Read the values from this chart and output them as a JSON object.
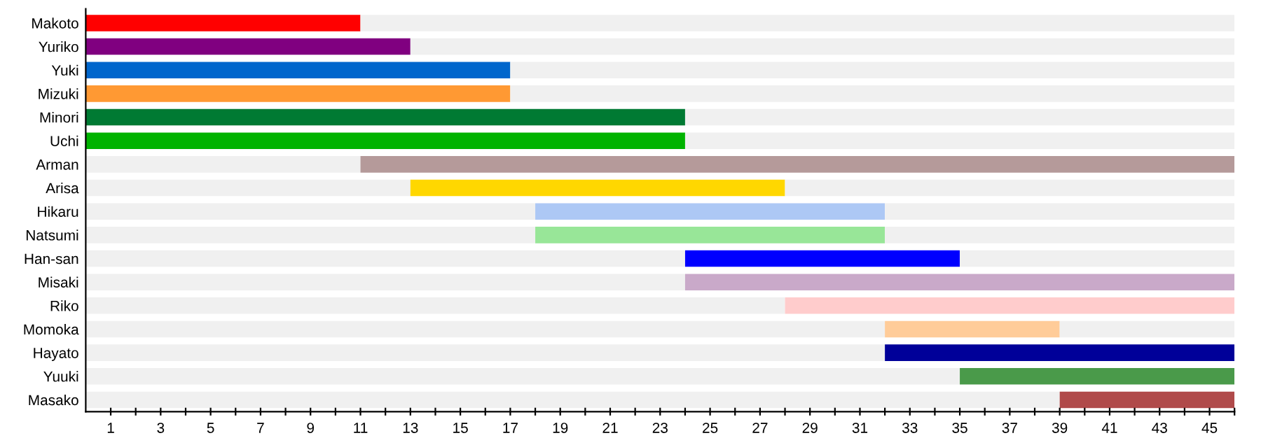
{
  "chart_data": {
    "type": "bar",
    "orientation": "horizontal",
    "stacked": true,
    "categories": [
      "Makoto",
      "Yuriko",
      "Yuki",
      "Mizuki",
      "Minori",
      "Uchi",
      "Arman",
      "Arisa",
      "Hikaru",
      "Natsumi",
      "Han-san",
      "Misaki",
      "Riko",
      "Momoka",
      "Hayato",
      "Yuuki",
      "Masako"
    ],
    "series": [
      {
        "color": "#f0f0f0",
        "values": [
          null,
          null,
          null,
          null,
          null,
          null,
          11,
          13,
          18,
          18,
          24,
          24,
          28,
          32,
          32,
          35,
          39
        ]
      },
      {
        "colors": [
          "#ff0000",
          "#800080",
          "#0066cc",
          "#ff9933",
          "#007a33",
          "#00b300",
          "#b59a9a",
          "#ffd700",
          "#adc8f5",
          "#98e698",
          "#0000ff",
          "#c9a9c9",
          "#ffcccc",
          "#ffcc99",
          "#000099",
          "#4a9a4a",
          "#b04a4a"
        ],
        "values": [
          11,
          13,
          17,
          17,
          24,
          24,
          35,
          15,
          14,
          14,
          11,
          22,
          18,
          7,
          14,
          11,
          7
        ]
      },
      {
        "color": "#f0f0f0",
        "values": [
          35,
          33,
          29,
          29,
          22,
          22,
          null,
          18,
          14,
          14,
          11,
          null,
          null,
          7,
          null,
          null,
          null
        ]
      }
    ],
    "xlim": [
      0,
      46
    ],
    "xticks": [
      1,
      {
        "value": 2,
        "label": null
      },
      3,
      {
        "value": 4,
        "label": null
      },
      5,
      {
        "value": 6,
        "label": null
      },
      7,
      {
        "value": 8,
        "label": null
      },
      9,
      {
        "value": 10,
        "label": null
      },
      11,
      {
        "value": 12,
        "label": null
      },
      13,
      {
        "value": 14,
        "label": null
      },
      15,
      {
        "value": 16,
        "label": null
      },
      17,
      {
        "value": 18,
        "label": null
      },
      19,
      {
        "value": 20,
        "label": null
      },
      21,
      {
        "value": 22,
        "label": null
      },
      23,
      {
        "value": 24,
        "label": null
      },
      25,
      {
        "value": 26,
        "label": null
      },
      27,
      {
        "value": 28,
        "label": null
      },
      29,
      {
        "value": 30,
        "label": null
      },
      31,
      {
        "value": 32,
        "label": null
      },
      33,
      {
        "value": 34,
        "label": null
      },
      35,
      {
        "value": 36,
        "label": null
      },
      37,
      {
        "value": 38,
        "label": null
      },
      39,
      {
        "value": 40,
        "label": null
      },
      41,
      {
        "value": 42,
        "label": null
      },
      43,
      {
        "value": 44,
        "label": null
      },
      45,
      {
        "value": 46,
        "label": null
      }
    ],
    "grid": false,
    "legend": false
  }
}
